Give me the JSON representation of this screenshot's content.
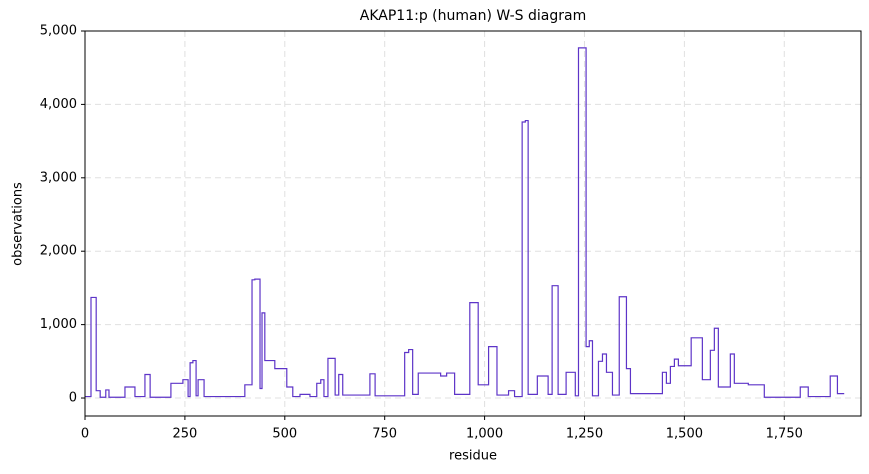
{
  "chart_data": {
    "type": "line",
    "step": "post",
    "title": "AKAP11:p (human) W-S diagram",
    "xlabel": "residue",
    "ylabel": "observations",
    "color": "#5d34c8",
    "grid": true,
    "xlim": [
      0,
      1942
    ],
    "ylim": [
      -245,
      5000
    ],
    "xticks": [
      0,
      250,
      500,
      750,
      {
        "value": 1000,
        "label": "1,000"
      },
      {
        "value": 1250,
        "label": "1,250"
      },
      {
        "value": 1500,
        "label": "1,500"
      },
      {
        "value": 1750,
        "label": "1,750"
      }
    ],
    "yticks": [
      0,
      {
        "value": 1000,
        "label": "1,000"
      },
      {
        "value": 2000,
        "label": "2,000"
      },
      {
        "value": 3000,
        "label": "3,000"
      },
      {
        "value": 4000,
        "label": "4,000"
      },
      {
        "value": 5000,
        "label": "5,000"
      }
    ],
    "x": [
      0,
      15,
      28,
      38,
      52,
      60,
      100,
      125,
      150,
      163,
      215,
      245,
      258,
      263,
      270,
      278,
      283,
      298,
      400,
      418,
      425,
      438,
      443,
      450,
      475,
      505,
      520,
      538,
      563,
      580,
      590,
      598,
      608,
      626,
      635,
      645,
      713,
      726,
      800,
      810,
      820,
      834,
      890,
      905,
      925,
      963,
      984,
      1010,
      1031,
      1060,
      1075,
      1094,
      1102,
      1109,
      1132,
      1159,
      1169,
      1184,
      1204,
      1227,
      1235,
      1254,
      1262,
      1270,
      1285,
      1295,
      1305,
      1320,
      1337,
      1355,
      1365,
      1445,
      1455,
      1465,
      1475,
      1485,
      1517,
      1545,
      1565,
      1575,
      1585,
      1615,
      1625,
      1660,
      1700,
      1790,
      1810,
      1865,
      1883,
      1900
    ],
    "values": [
      20,
      1370,
      100,
      10,
      110,
      10,
      150,
      20,
      320,
      10,
      200,
      250,
      20,
      480,
      510,
      30,
      250,
      20,
      180,
      1610,
      1620,
      130,
      1160,
      510,
      400,
      150,
      20,
      50,
      20,
      200,
      250,
      20,
      540,
      40,
      320,
      40,
      330,
      30,
      620,
      660,
      50,
      340,
      300,
      340,
      50,
      1300,
      180,
      700,
      40,
      100,
      20,
      3760,
      3780,
      50,
      300,
      50,
      1530,
      50,
      350,
      30,
      4770,
      700,
      780,
      30,
      500,
      600,
      350,
      40,
      1380,
      400,
      60,
      350,
      200,
      430,
      530,
      440,
      820,
      250,
      650,
      950,
      150,
      600,
      200,
      180,
      10,
      150,
      20,
      300,
      60,
      60
    ]
  }
}
